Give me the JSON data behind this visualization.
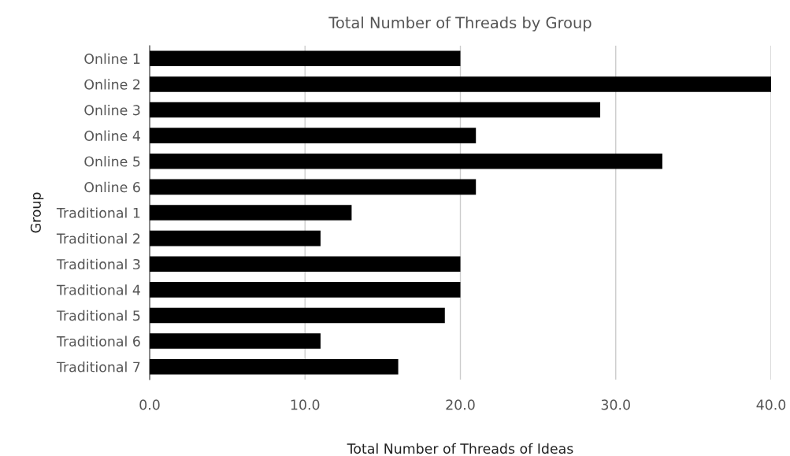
{
  "chart_data": {
    "type": "bar",
    "orientation": "horizontal",
    "title": "Total Number of Threads by Group",
    "xlabel": "Total Number of Threads of Ideas",
    "ylabel": "Group",
    "categories": [
      "Online 1",
      "Online 2",
      "Online 3",
      "Online 4",
      "Online 5",
      "Online 6",
      "Traditional 1",
      "Traditional 2",
      "Traditional 3",
      "Traditional 4",
      "Traditional 5",
      "Traditional 6",
      "Traditional 7"
    ],
    "values": [
      20,
      40,
      29,
      21,
      33,
      21,
      13,
      11,
      20,
      20,
      19,
      11,
      16
    ],
    "color": "#000000",
    "xlim": [
      0,
      40
    ],
    "xticks": [
      {
        "value": 0,
        "label": "0.0"
      },
      {
        "value": 10,
        "label": "10.0"
      },
      {
        "value": 20,
        "label": "20.0"
      },
      {
        "value": 30,
        "label": "30.0"
      },
      {
        "value": 40,
        "label": "40.0"
      }
    ],
    "grid": "x",
    "legend": false
  }
}
